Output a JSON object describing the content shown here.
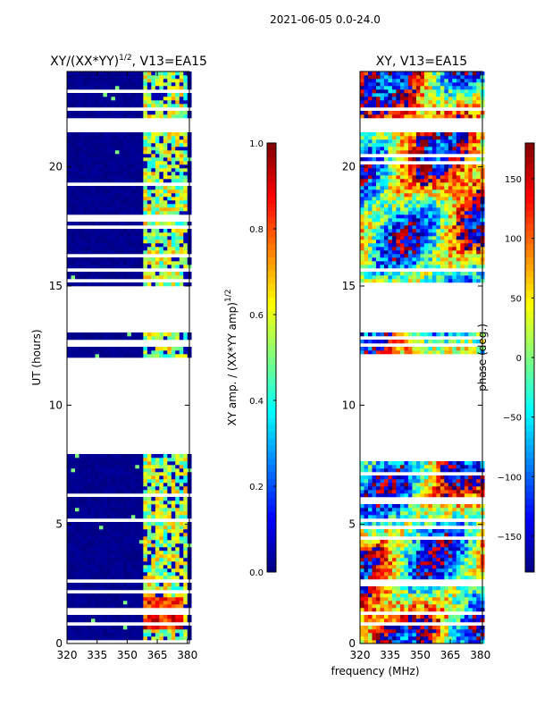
{
  "header": {
    "date_range": "2021-06-05 0.0-24.0"
  },
  "chart_data": [
    {
      "type": "heatmap",
      "title_main": "XY/(XX*YY)",
      "title_sup": "1/2",
      "title_tail": ", V13=EA15",
      "xlabel": "",
      "ylabel": "UT (hours)",
      "xlim": [
        320,
        381
      ],
      "ylim": [
        0,
        24
      ],
      "xticks": [
        320,
        335,
        350,
        365,
        380
      ],
      "yticks": [
        0,
        5,
        10,
        15,
        20
      ],
      "colorbar": {
        "label_main": "XY amp. / (XX*YY amp)",
        "label_sup": "1/2",
        "range": [
          0.0,
          1.0
        ],
        "ticks": [
          "0.0",
          "0.2",
          "0.4",
          "0.6",
          "0.8",
          "1.0"
        ],
        "tick_values": [
          0.0,
          0.2,
          0.4,
          0.6,
          0.8,
          1.0
        ]
      },
      "data_gaps_hours": [
        [
          8.0,
          12.0
        ],
        [
          12.4,
          12.6
        ],
        [
          13.0,
          15.0
        ],
        [
          21.5,
          22.0
        ],
        [
          22.3,
          22.5
        ]
      ],
      "background_value": 0.0,
      "bright_band_mhz": [
        359,
        380
      ],
      "bright_band_value": 0.55,
      "hotspot": {
        "mhz": [
          359,
          378
        ],
        "hours": [
          0.6,
          1.9
        ],
        "value": 0.85
      }
    },
    {
      "type": "heatmap",
      "title": "XY, V13=EA15",
      "xlabel": "frequency (MHz)",
      "ylabel": "",
      "xlim": [
        320,
        381
      ],
      "ylim": [
        0,
        24
      ],
      "xticks": [
        320,
        335,
        350,
        365,
        380
      ],
      "yticks": [
        0,
        5,
        10,
        15,
        20
      ],
      "colorbar": {
        "label": "phase (deg.)",
        "range": [
          -180,
          180
        ],
        "ticks": [
          "−150",
          "−100",
          "−50",
          "0",
          "50",
          "100",
          "150"
        ],
        "tick_values": [
          -150,
          -100,
          -50,
          0,
          50,
          100,
          150
        ]
      },
      "data_gaps_hours": [
        [
          8.0,
          12.0
        ],
        [
          12.4,
          12.6
        ],
        [
          13.0,
          15.0
        ],
        [
          21.5,
          22.0
        ],
        [
          22.3,
          22.5
        ]
      ]
    }
  ]
}
